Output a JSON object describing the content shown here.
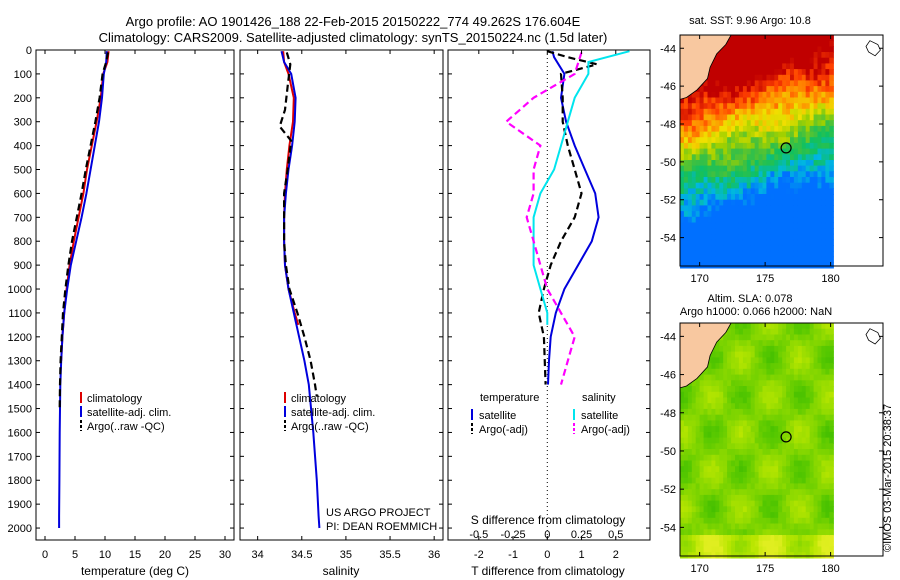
{
  "header": {
    "line1": "Argo profile: AO 1901426_188 22-Feb-2015 20150222_774 49.262S 176.604E",
    "line2": "Climatology: CARS2009. Satellite-adjusted climatology: synTS_20150224.nc (1.5d later)"
  },
  "credit": {
    "project": "US ARGO PROJECT",
    "pi": "PI: DEAN ROEMMICH"
  },
  "imos_stamp": "©IMOS 03-Mar-2015 20:38:37",
  "colors": {
    "climatology": "#dd0000",
    "satellite": "#0000dd",
    "argo": "#000000",
    "salinity_satellite": "#00e5ee",
    "salinity_argo": "#ff00ff"
  },
  "chart_data": [
    {
      "type": "line",
      "id": "temperature",
      "xlabel": "temperature (deg C)",
      "xlim": [
        -1.5,
        31.5
      ],
      "ylim": [
        2050,
        0
      ],
      "x_ticks": [
        0,
        5,
        10,
        15,
        20,
        25,
        30
      ],
      "x_tick_labels": [
        "0",
        "5",
        "10",
        "15",
        "20",
        "25",
        "30"
      ],
      "y_ticks": [
        0,
        100,
        200,
        300,
        400,
        500,
        600,
        700,
        800,
        900,
        1000,
        1100,
        1200,
        1300,
        1400,
        1500,
        1600,
        1700,
        1800,
        1900,
        2000
      ],
      "y_tick_labels": [
        "0",
        "100",
        "200",
        "300",
        "400",
        "500",
        "600",
        "700",
        "800",
        "900",
        "1000",
        "1100",
        "1200",
        "1300",
        "1400",
        "1500",
        "1600",
        "1700",
        "1800",
        "1900",
        "2000"
      ],
      "legend_placement": "lower-center",
      "series": [
        {
          "name": "climatology",
          "style": "solid",
          "color": "#dd0000",
          "x": [
            10.6,
            10.4,
            9.7,
            9.3,
            8.6,
            7.8,
            7.0,
            6.4,
            5.6,
            4.8,
            4.1,
            3.6,
            3.2,
            2.9,
            2.7
          ],
          "y": [
            5,
            50,
            100,
            200,
            300,
            400,
            500,
            600,
            700,
            800,
            900,
            1000,
            1100,
            1200,
            1300
          ]
        },
        {
          "name": "satellite-adj. clim.",
          "style": "solid",
          "color": "#0000dd",
          "x": [
            10.3,
            10.2,
            9.8,
            9.5,
            9.0,
            8.3,
            7.6,
            6.9,
            6.1,
            5.2,
            4.3,
            3.7,
            3.2,
            2.9,
            2.7,
            2.55,
            2.45,
            2.4,
            2.35,
            2.35
          ],
          "y": [
            5,
            50,
            100,
            200,
            300,
            400,
            500,
            600,
            700,
            800,
            900,
            1000,
            1100,
            1200,
            1300,
            1400,
            1600,
            1800,
            1950,
            2000
          ]
        },
        {
          "name": "Argo(..raw -QC)",
          "style": "dashed",
          "color": "#000000",
          "x": [
            10.5,
            10.2,
            9.6,
            9.1,
            8.4,
            7.6,
            6.8,
            6.1,
            5.3,
            4.5,
            3.9,
            3.4,
            3.0,
            2.8,
            2.6,
            2.5,
            2.45
          ],
          "y": [
            10,
            50,
            100,
            200,
            300,
            400,
            500,
            600,
            700,
            800,
            900,
            1000,
            1100,
            1200,
            1300,
            1400,
            1500
          ]
        }
      ]
    },
    {
      "type": "line",
      "id": "salinity",
      "xlabel": "salinity",
      "xlim": [
        33.8,
        36.1
      ],
      "ylim": [
        2050,
        0
      ],
      "x_ticks": [
        34,
        34.5,
        35,
        35.5,
        36
      ],
      "x_tick_labels": [
        "34",
        "34.5",
        "35",
        "35.5",
        "36"
      ],
      "legend_placement": "lower-center",
      "series": [
        {
          "name": "climatology",
          "style": "solid",
          "color": "#dd0000",
          "x": [
            34.29,
            34.3,
            34.35,
            34.41,
            34.4,
            34.36,
            34.33,
            34.31,
            34.3,
            34.3,
            34.31,
            34.35,
            34.42,
            34.46
          ],
          "y": [
            5,
            50,
            100,
            200,
            300,
            400,
            500,
            600,
            700,
            800,
            900,
            1000,
            1100,
            1150
          ]
        },
        {
          "name": "satellite-adj. clim.",
          "style": "solid",
          "color": "#0000dd",
          "x": [
            34.27,
            34.3,
            34.38,
            34.43,
            34.42,
            34.39,
            34.35,
            34.32,
            34.3,
            34.3,
            34.31,
            34.35,
            34.41,
            34.47,
            34.53,
            34.58,
            34.63,
            34.67,
            34.69,
            34.7
          ],
          "y": [
            5,
            50,
            100,
            200,
            300,
            400,
            500,
            600,
            700,
            800,
            900,
            1000,
            1100,
            1200,
            1300,
            1400,
            1600,
            1800,
            1950,
            2000
          ]
        },
        {
          "name": "Argo(..raw -QC)",
          "style": "dashed",
          "color": "#000000",
          "x": [
            34.33,
            34.37,
            34.34,
            34.31,
            34.25,
            34.38,
            34.34,
            34.3,
            34.3,
            34.3,
            34.32,
            34.36,
            34.45,
            34.53,
            34.6,
            34.65,
            34.67
          ],
          "y": [
            10,
            60,
            150,
            250,
            320,
            380,
            500,
            600,
            700,
            800,
            900,
            1000,
            1100,
            1200,
            1300,
            1400,
            1450
          ]
        }
      ]
    },
    {
      "type": "line",
      "id": "difference",
      "xlabel": "T difference from climatology",
      "top_xlabel": "S difference from climatology",
      "xlim": [
        -2.9,
        3.0
      ],
      "ylim": [
        2050,
        0
      ],
      "x_ticks": [
        -2,
        -1,
        0,
        1,
        2
      ],
      "x_tick_labels": [
        "-2",
        "-1",
        "0",
        "1",
        "2"
      ],
      "s_ticks": [
        -0.5,
        -0.25,
        0,
        0.25,
        0.5
      ],
      "s_tick_labels": [
        "-0.5",
        "-0.25",
        "0",
        "0.25",
        "0.5"
      ],
      "s_scale": 4,
      "legend_placement": "lower-center",
      "legend_headers": {
        "temperature": "temperature",
        "salinity": "salinity"
      },
      "series": [
        {
          "name": "satellite",
          "group": "temperature",
          "style": "solid",
          "color": "#0000dd",
          "x": [
            0.15,
            0.2,
            0.5,
            0.4,
            0.55,
            0.8,
            1.1,
            1.4,
            1.5,
            1.3,
            0.9,
            0.5,
            0.25,
            0.1,
            0.05,
            0.02
          ],
          "y": [
            5,
            30,
            100,
            200,
            300,
            400,
            500,
            600,
            700,
            800,
            900,
            1000,
            1100,
            1200,
            1300,
            1400
          ]
        },
        {
          "name": "Argo(-adj)",
          "group": "temperature",
          "style": "dashed",
          "color": "#000000",
          "x": [
            0.0,
            0.6,
            1.45,
            0.4,
            0.45,
            0.45,
            0.6,
            0.8,
            1.0,
            0.8,
            0.4,
            0.1,
            -0.1,
            -0.25,
            -0.1,
            -0.05
          ],
          "y": [
            5,
            30,
            60,
            100,
            200,
            300,
            400,
            500,
            600,
            700,
            800,
            900,
            1000,
            1100,
            1200,
            1400
          ]
        },
        {
          "name": "satellite",
          "group": "salinity",
          "style": "solid",
          "color": "#00e5ee",
          "x": [
            0.6,
            0.3,
            0.3,
            0.2,
            0.15,
            0.1,
            0.05,
            -0.05,
            -0.1,
            -0.1,
            -0.1,
            -0.05,
            0.0,
            0.0
          ],
          "y": [
            5,
            50,
            100,
            200,
            300,
            400,
            500,
            600,
            700,
            800,
            900,
            1000,
            1100,
            1150
          ]
        },
        {
          "name": "Argo(-adj)",
          "group": "salinity",
          "style": "dashed",
          "color": "#ff00ff",
          "x": [
            0.25,
            0.2,
            -0.1,
            -0.2,
            -0.3,
            -0.05,
            -0.1,
            -0.1,
            -0.15,
            -0.1,
            -0.05,
            0.0,
            0.1,
            0.2,
            0.1
          ],
          "y": [
            10,
            100,
            200,
            250,
            300,
            400,
            500,
            600,
            700,
            800,
            900,
            1000,
            1100,
            1200,
            1400
          ]
        }
      ]
    },
    {
      "type": "heatmap",
      "id": "sst_map",
      "title": "sat. SST: 9.96 Argo: 10.8",
      "xlim": [
        168.5,
        184
      ],
      "ylim": [
        -55.5,
        -43.3
      ],
      "x_ticks": [
        170,
        175,
        180
      ],
      "x_tick_labels": [
        "170",
        "175",
        "180"
      ],
      "y_ticks": [
        -44,
        -46,
        -48,
        -50,
        -52,
        -54
      ],
      "y_tick_labels": [
        "-44",
        "-46",
        "-48",
        "-50",
        "-52",
        "-54"
      ],
      "argo_position": [
        176.604,
        -49.262
      ],
      "data_extent_lon": [
        168.5,
        180
      ],
      "palette": [
        "#0070ff",
        "#00b8e0",
        "#10c060",
        "#40c040",
        "#a0d000",
        "#f0e000",
        "#ff9000",
        "#ff4000",
        "#c00000"
      ]
    },
    {
      "type": "heatmap",
      "id": "sla_map",
      "title": "Altim. SLA: 0.078",
      "subtitle": "Argo h1000: 0.066 h2000: NaN",
      "xlim": [
        168.5,
        184
      ],
      "ylim": [
        -55.5,
        -43.3
      ],
      "x_ticks": [
        170,
        175,
        180
      ],
      "x_tick_labels": [
        "170",
        "175",
        "180"
      ],
      "y_ticks": [
        -44,
        -46,
        -48,
        -50,
        -52,
        -54
      ],
      "y_tick_labels": [
        "-44",
        "-46",
        "-48",
        "-50",
        "-52",
        "-54"
      ],
      "argo_position": [
        176.604,
        -49.262
      ],
      "data_extent_lon": [
        168.5,
        180
      ],
      "palette": [
        "#2fb400",
        "#56c800",
        "#8ad800",
        "#b8e600",
        "#e0ee20"
      ]
    }
  ]
}
